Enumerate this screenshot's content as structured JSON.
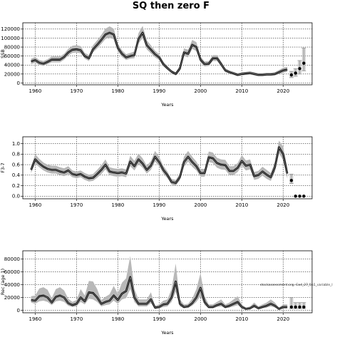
{
  "figure": {
    "title": "SQ then zero F",
    "watermark": "stockassessment.org, Cod_27_5b1_variable_l"
  },
  "chart_data": [
    {
      "type": "line",
      "panel": "ssb",
      "ylabel": "SSB",
      "xlabel": "Years",
      "xlim": [
        1957,
        2027
      ],
      "ylim": [
        -4000,
        134000
      ],
      "xticks": [
        1960,
        1970,
        1980,
        1990,
        2000,
        2010,
        2020
      ],
      "yticks": [
        0,
        20000,
        40000,
        60000,
        80000,
        100000,
        120000
      ],
      "grid": true,
      "series": [
        {
          "x": [
            1959,
            1960,
            1961,
            1962,
            1963,
            1964,
            1965,
            1966,
            1967,
            1968,
            1969,
            1970,
            1971,
            1972,
            1973,
            1974,
            1975,
            1976,
            1977,
            1978,
            1979,
            1980,
            1981,
            1982,
            1983,
            1984,
            1985,
            1986,
            1987,
            1988,
            1989,
            1990,
            1991,
            1992,
            1993,
            1994,
            1995,
            1996,
            1997,
            1998,
            1999,
            2000,
            2001,
            2002,
            2003,
            2004,
            2005,
            2006,
            2007,
            2008,
            2009,
            2010,
            2011,
            2012,
            2013,
            2014,
            2015,
            2016,
            2017,
            2018,
            2019,
            2020,
            2021
          ],
          "y": [
            48000,
            51000,
            45000,
            43000,
            47000,
            52000,
            52000,
            52000,
            58000,
            68000,
            74000,
            75000,
            73000,
            60000,
            55000,
            75000,
            85000,
            96000,
            108000,
            112000,
            108000,
            78000,
            65000,
            57000,
            60000,
            62000,
            98000,
            112000,
            84000,
            74000,
            64000,
            57000,
            42000,
            33000,
            25000,
            20000,
            32000,
            68000,
            65000,
            85000,
            80000,
            52000,
            42000,
            43000,
            55000,
            55000,
            42000,
            28000,
            24000,
            21000,
            18000,
            20000,
            21000,
            22000,
            20000,
            18000,
            18000,
            19000,
            19000,
            20000,
            24000,
            28000,
            30000
          ],
          "lower": [
            42000,
            45000,
            40000,
            38000,
            42000,
            46000,
            46000,
            46000,
            52000,
            61000,
            67000,
            68000,
            66000,
            54000,
            49000,
            68000,
            77000,
            87000,
            98000,
            101000,
            97000,
            70000,
            58000,
            51000,
            54000,
            55000,
            88000,
            100000,
            75000,
            66000,
            57000,
            51000,
            37000,
            29000,
            22000,
            17000,
            27000,
            60000,
            57000,
            76000,
            71000,
            46000,
            37000,
            38000,
            49000,
            49000,
            37000,
            24000,
            21000,
            18000,
            15000,
            17000,
            18000,
            19000,
            17000,
            15000,
            15000,
            16000,
            16000,
            17000,
            20000,
            23000,
            25000
          ],
          "upper": [
            54000,
            58000,
            51000,
            49000,
            53000,
            59000,
            59000,
            59000,
            65000,
            76000,
            83000,
            84000,
            82000,
            67000,
            62000,
            84000,
            95000,
            107000,
            121000,
            126000,
            121000,
            88000,
            73000,
            64000,
            67000,
            70000,
            111000,
            127000,
            95000,
            84000,
            72000,
            64000,
            48000,
            38000,
            29000,
            24000,
            38000,
            77000,
            74000,
            96000,
            91000,
            59000,
            48000,
            49000,
            62000,
            62000,
            48000,
            33000,
            28000,
            25000,
            22000,
            24000,
            25000,
            26000,
            24000,
            22000,
            22000,
            23000,
            23000,
            24000,
            29000,
            34000,
            36000
          ]
        }
      ],
      "projection": {
        "x": [
          2022,
          2023,
          2024,
          2025
        ],
        "y": [
          18000,
          22000,
          32000,
          44000
        ],
        "lower": [
          12000,
          15000,
          20000,
          27000
        ],
        "upper": [
          26000,
          32000,
          50000,
          78000
        ]
      }
    },
    {
      "type": "line",
      "panel": "fbar",
      "ylabel": "F3-7",
      "xlabel": "Years",
      "xlim": [
        1957,
        2027
      ],
      "ylim": [
        -0.05,
        1.13
      ],
      "xticks": [
        1960,
        1970,
        1980,
        1990,
        2000,
        2010,
        2020
      ],
      "yticks": [
        0.0,
        0.2,
        0.4,
        0.6,
        0.8,
        1.0
      ],
      "grid": true,
      "series": [
        {
          "x": [
            1959,
            1960,
            1961,
            1962,
            1963,
            1964,
            1965,
            1966,
            1967,
            1968,
            1969,
            1970,
            1971,
            1972,
            1973,
            1974,
            1975,
            1976,
            1977,
            1978,
            1979,
            1980,
            1981,
            1982,
            1983,
            1984,
            1985,
            1986,
            1987,
            1988,
            1989,
            1990,
            1991,
            1992,
            1993,
            1994,
            1995,
            1996,
            1997,
            1998,
            1999,
            2000,
            2001,
            2002,
            2003,
            2004,
            2005,
            2006,
            2007,
            2008,
            2009,
            2010,
            2011,
            2012,
            2013,
            2014,
            2015,
            2016,
            2017,
            2018,
            2019,
            2020,
            2021
          ],
          "y": [
            0.5,
            0.7,
            0.62,
            0.56,
            0.52,
            0.5,
            0.5,
            0.47,
            0.45,
            0.49,
            0.42,
            0.4,
            0.42,
            0.37,
            0.34,
            0.35,
            0.42,
            0.5,
            0.6,
            0.47,
            0.45,
            0.44,
            0.45,
            0.43,
            0.66,
            0.57,
            0.7,
            0.62,
            0.5,
            0.58,
            0.75,
            0.65,
            0.5,
            0.4,
            0.27,
            0.25,
            0.36,
            0.65,
            0.75,
            0.65,
            0.57,
            0.44,
            0.44,
            0.74,
            0.72,
            0.63,
            0.6,
            0.59,
            0.48,
            0.48,
            0.54,
            0.67,
            0.58,
            0.6,
            0.38,
            0.4,
            0.47,
            0.41,
            0.36,
            0.55,
            0.93,
            0.8,
            0.43
          ],
          "lower": [
            0.44,
            0.62,
            0.55,
            0.49,
            0.45,
            0.43,
            0.43,
            0.4,
            0.38,
            0.42,
            0.36,
            0.34,
            0.36,
            0.31,
            0.28,
            0.29,
            0.35,
            0.42,
            0.51,
            0.4,
            0.38,
            0.37,
            0.38,
            0.36,
            0.57,
            0.49,
            0.61,
            0.54,
            0.43,
            0.5,
            0.66,
            0.57,
            0.43,
            0.34,
            0.22,
            0.2,
            0.3,
            0.56,
            0.66,
            0.56,
            0.49,
            0.37,
            0.37,
            0.65,
            0.63,
            0.54,
            0.51,
            0.5,
            0.4,
            0.4,
            0.46,
            0.58,
            0.49,
            0.51,
            0.31,
            0.33,
            0.39,
            0.33,
            0.29,
            0.46,
            0.82,
            0.68,
            0.33
          ],
          "upper": [
            0.56,
            0.8,
            0.71,
            0.64,
            0.6,
            0.58,
            0.58,
            0.55,
            0.53,
            0.57,
            0.49,
            0.47,
            0.49,
            0.44,
            0.41,
            0.42,
            0.5,
            0.59,
            0.7,
            0.55,
            0.53,
            0.52,
            0.53,
            0.51,
            0.77,
            0.67,
            0.81,
            0.72,
            0.58,
            0.67,
            0.86,
            0.75,
            0.58,
            0.47,
            0.33,
            0.31,
            0.43,
            0.75,
            0.86,
            0.75,
            0.66,
            0.52,
            0.52,
            0.85,
            0.83,
            0.73,
            0.7,
            0.69,
            0.57,
            0.57,
            0.63,
            0.78,
            0.68,
            0.7,
            0.46,
            0.48,
            0.56,
            0.5,
            0.44,
            0.65,
            1.06,
            0.94,
            0.54
          ]
        }
      ],
      "projection": {
        "x": [
          2022,
          2023,
          2024,
          2025
        ],
        "y": [
          0.3,
          0.0,
          0.0,
          0.0
        ],
        "lower": [
          0.24,
          0.0,
          0.0,
          0.0
        ],
        "upper": [
          0.42,
          0.0,
          0.0,
          0.0
        ]
      }
    },
    {
      "type": "line",
      "panel": "recruits",
      "ylabel": "Rec (age 1)",
      "xlabel": "Years",
      "xlim": [
        1957,
        2027
      ],
      "ylim": [
        -4000,
        93000
      ],
      "xticks": [
        1960,
        1970,
        1980,
        1990,
        2000,
        2010,
        2020
      ],
      "yticks": [
        0,
        20000,
        40000,
        60000,
        80000
      ],
      "grid": true,
      "series": [
        {
          "x": [
            1959,
            1960,
            1961,
            1962,
            1963,
            1964,
            1965,
            1966,
            1967,
            1968,
            1969,
            1970,
            1971,
            1972,
            1973,
            1974,
            1975,
            1976,
            1977,
            1978,
            1979,
            1980,
            1981,
            1982,
            1983,
            1984,
            1985,
            1986,
            1987,
            1988,
            1989,
            1990,
            1991,
            1992,
            1993,
            1994,
            1995,
            1996,
            1997,
            1998,
            1999,
            2000,
            2001,
            2002,
            2003,
            2004,
            2005,
            2006,
            2007,
            2008,
            2009,
            2010,
            2011,
            2012,
            2013,
            2014,
            2015,
            2016,
            2017,
            2018,
            2019,
            2020,
            2021
          ],
          "y": [
            16000,
            15000,
            22000,
            23000,
            20000,
            12000,
            21000,
            23000,
            20000,
            11000,
            8000,
            10000,
            20000,
            14000,
            28000,
            27000,
            20000,
            10000,
            13000,
            15000,
            23000,
            16000,
            26000,
            30000,
            52000,
            20000,
            10000,
            10000,
            10000,
            17000,
            4000,
            5000,
            9000,
            10000,
            20000,
            45000,
            10000,
            5000,
            6000,
            11000,
            20000,
            35000,
            13000,
            5000,
            5000,
            8000,
            10000,
            5000,
            7000,
            10000,
            13000,
            5000,
            2000,
            3000,
            7000,
            3000,
            5000,
            7000,
            10000,
            7000,
            2000,
            5000,
            5000
          ],
          "lower": [
            12000,
            10000,
            14000,
            15000,
            13000,
            8000,
            14000,
            15000,
            13000,
            7000,
            5000,
            6000,
            13000,
            9000,
            18000,
            17000,
            13000,
            6000,
            8000,
            9000,
            15000,
            10000,
            17000,
            19000,
            33000,
            13000,
            6000,
            6000,
            6000,
            11000,
            2000,
            3000,
            5000,
            6000,
            13000,
            29000,
            6000,
            3000,
            3500,
            7000,
            13000,
            22000,
            8000,
            3000,
            3000,
            5000,
            6000,
            3000,
            4000,
            6000,
            8000,
            3000,
            1000,
            1500,
            4000,
            1500,
            3000,
            4000,
            6000,
            4000,
            1000,
            2500,
            2500
          ],
          "upper": [
            22000,
            23000,
            34000,
            36000,
            32000,
            19000,
            33000,
            36000,
            31000,
            18000,
            13000,
            16000,
            33000,
            23000,
            46000,
            45000,
            33000,
            16000,
            21000,
            25000,
            38000,
            26000,
            43000,
            50000,
            85000,
            33000,
            17000,
            17000,
            17000,
            28000,
            7000,
            9000,
            15000,
            17000,
            33000,
            73000,
            17000,
            9000,
            10000,
            18000,
            33000,
            58000,
            22000,
            9000,
            9000,
            13000,
            17000,
            9000,
            12000,
            17000,
            22000,
            9000,
            4000,
            6000,
            12000,
            6000,
            9000,
            12000,
            17000,
            12000,
            4000,
            9000,
            9000
          ]
        }
      ],
      "projection": {
        "x": [
          2022,
          2023,
          2024,
          2025
        ],
        "y": [
          5000,
          5000,
          5000,
          5000
        ],
        "lower": [
          2500,
          2500,
          2500,
          2500
        ],
        "upper": [
          20000,
          12000,
          12000,
          12000
        ]
      }
    }
  ],
  "colors": {
    "band": "#b8b8b8",
    "line": "#000000",
    "center": "#999999",
    "grid": "#000000",
    "proj_band": "#bbbbbb"
  }
}
